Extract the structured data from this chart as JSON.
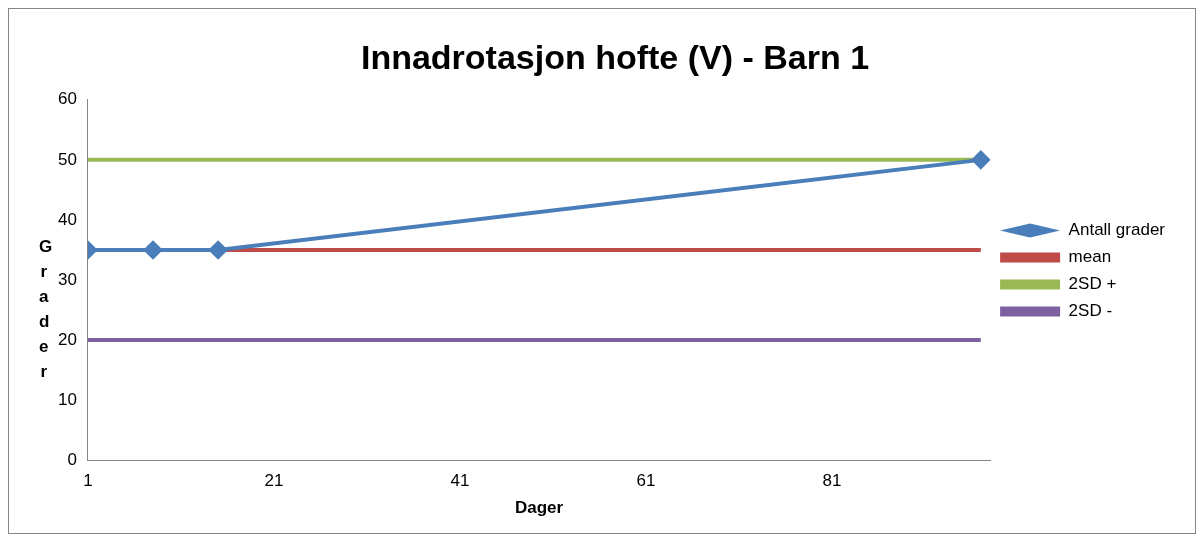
{
  "chart_data": {
    "type": "line",
    "title": "Innadrotasjon hofte (V) - Barn 1",
    "xlabel": "Dager",
    "ylabel": "Grader",
    "xlim": [
      1,
      98
    ],
    "xticks": [
      1,
      21,
      41,
      61,
      81
    ],
    "ylim": [
      0,
      60
    ],
    "yticks": [
      0,
      10,
      20,
      30,
      40,
      50,
      60
    ],
    "grid": false,
    "legend": "right",
    "series": [
      {
        "name": "Antall grader",
        "color": "#4a7ebb",
        "x": [
          1,
          8,
          15,
          97
        ],
        "values": [
          35,
          35,
          35,
          50
        ],
        "marker": "diamond"
      },
      {
        "name": "mean",
        "color": "#be4b48",
        "x": [
          1,
          97
        ],
        "values": [
          35,
          35
        ],
        "marker": "none"
      },
      {
        "name": "2SD +",
        "color": "#98b954",
        "x": [
          1,
          97
        ],
        "values": [
          50,
          50
        ],
        "marker": "none"
      },
      {
        "name": "2SD -",
        "color": "#7d60a0",
        "x": [
          1,
          97
        ],
        "values": [
          20,
          20
        ],
        "marker": "none"
      }
    ]
  }
}
